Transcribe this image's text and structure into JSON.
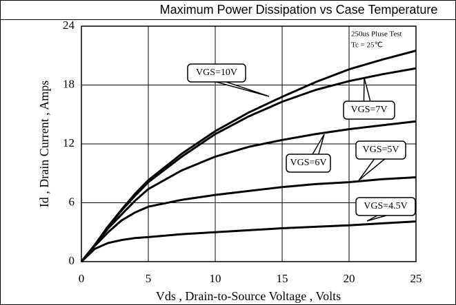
{
  "chart_data": {
    "type": "line",
    "title": "Maximum Power Dissipation vs Case Temperature",
    "x_label": "Vds , Drain-to-Source Voltage , Volts",
    "y_label": "Id , Drain Current , Amps",
    "annotations": [
      "250us Pluse Test",
      "Tc = 25℃"
    ],
    "x": [
      0,
      1,
      2,
      3,
      4,
      5,
      7.5,
      10,
      12.5,
      15,
      17.5,
      20,
      22.5,
      25
    ],
    "series": [
      {
        "name": "VGS=10V",
        "color": "#000000",
        "values": [
          0,
          1.7,
          3.6,
          5.3,
          6.9,
          8.3,
          11.0,
          13.3,
          15.2,
          16.8,
          18.3,
          19.6,
          20.6,
          21.5
        ]
      },
      {
        "name": "VGS=7V",
        "color": "#000000",
        "values": [
          0,
          1.7,
          3.6,
          5.2,
          6.7,
          8.1,
          10.7,
          13.0,
          14.8,
          16.3,
          17.5,
          18.4,
          19.1,
          19.7
        ]
      },
      {
        "name": "VGS=6V",
        "color": "#000000",
        "values": [
          0,
          1.7,
          3.4,
          4.8,
          6.2,
          7.4,
          9.3,
          10.7,
          11.7,
          12.4,
          13.0,
          13.5,
          13.9,
          14.3
        ]
      },
      {
        "name": "VGS=5V",
        "color": "#000000",
        "values": [
          0,
          1.6,
          3.0,
          4.2,
          5.0,
          5.6,
          6.3,
          6.8,
          7.2,
          7.6,
          7.9,
          8.1,
          8.4,
          8.6
        ]
      },
      {
        "name": "VGS=4.5V",
        "color": "#000000",
        "values": [
          0,
          1.3,
          1.9,
          2.2,
          2.4,
          2.5,
          2.8,
          3.0,
          3.2,
          3.4,
          3.55,
          3.7,
          3.9,
          4.1
        ]
      }
    ],
    "xlim": [
      0,
      25
    ],
    "xticks": [
      0,
      5,
      10,
      15,
      20,
      25
    ],
    "ylim": [
      0,
      24
    ],
    "yticks": [
      0,
      6,
      12,
      18,
      24
    ],
    "grid": true
  }
}
